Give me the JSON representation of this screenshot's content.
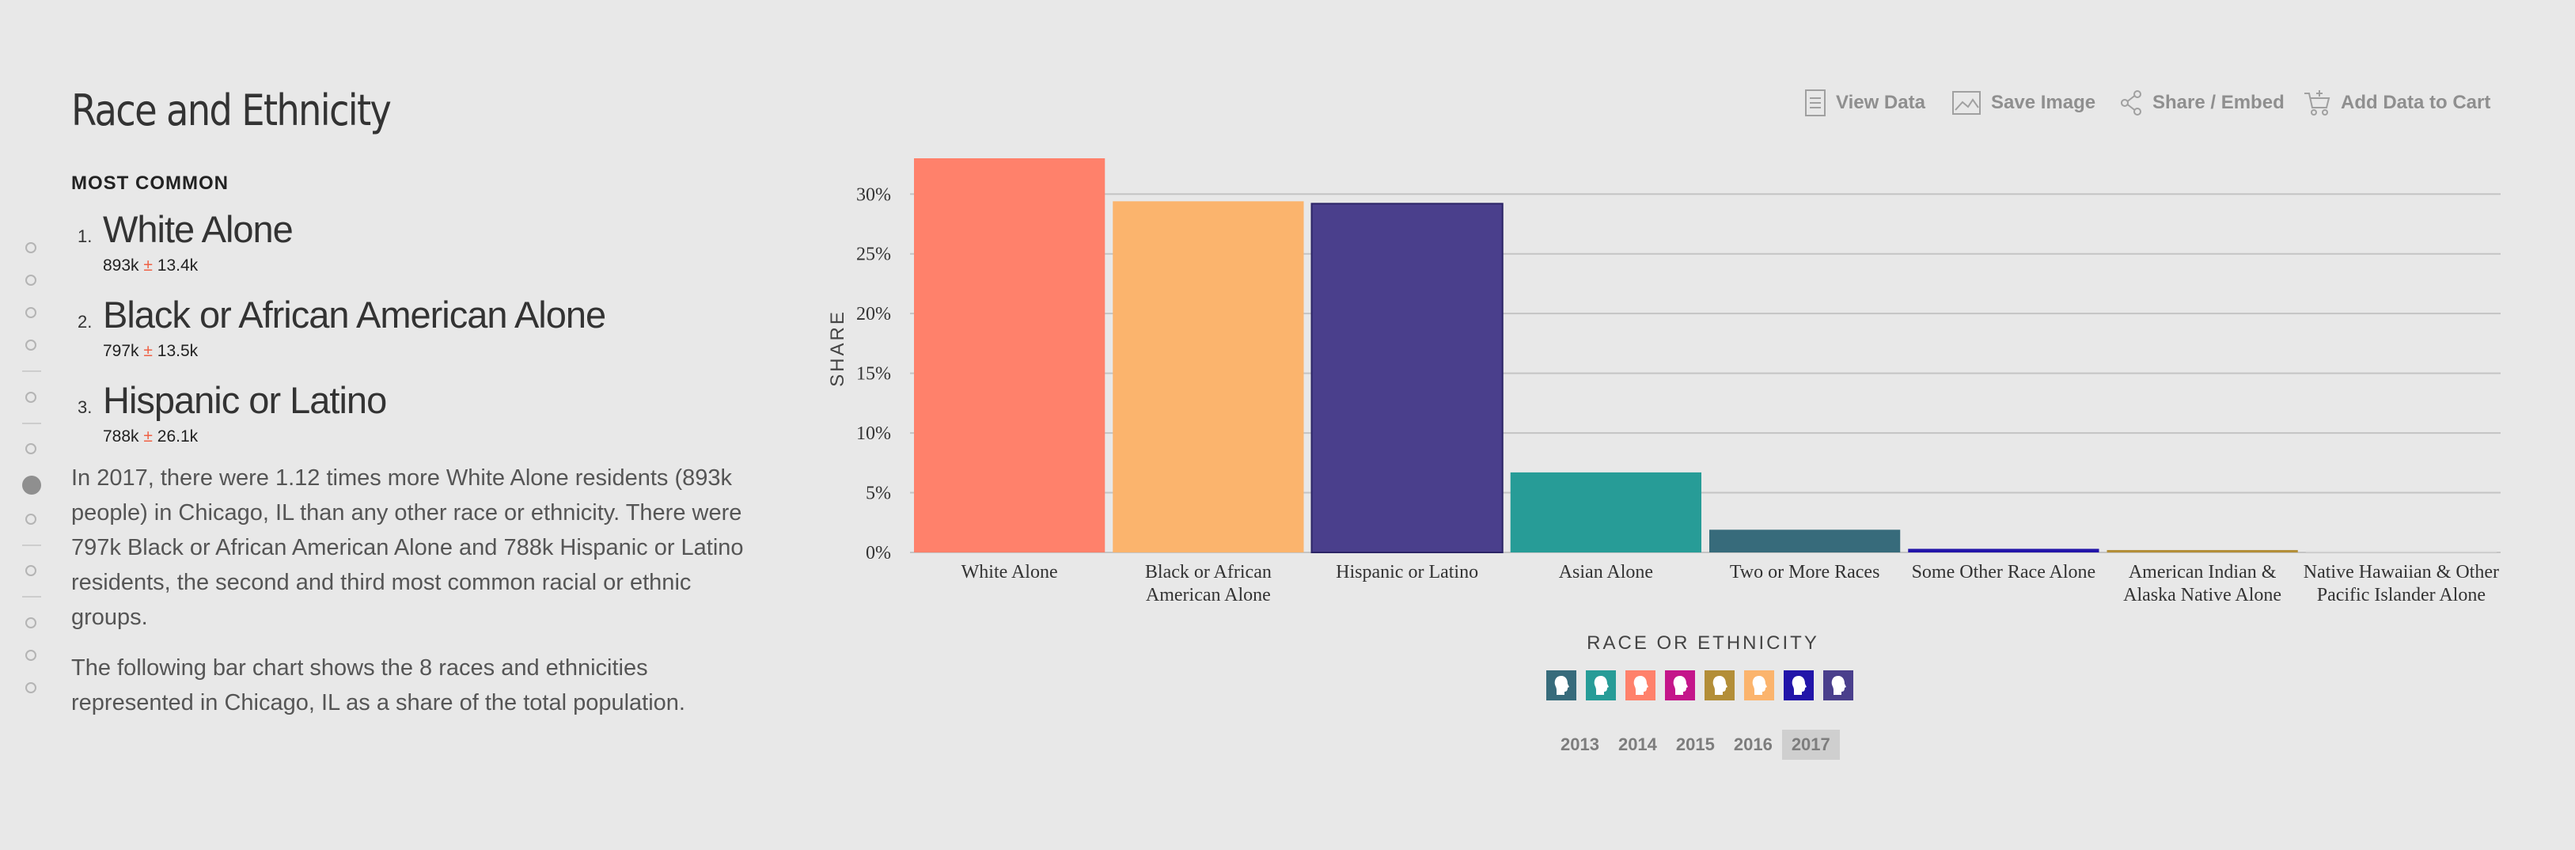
{
  "section": {
    "title": "Race and Ethnicity",
    "most_common_heading": "MOST COMMON"
  },
  "ranking": [
    {
      "rank": "1.",
      "name": "White Alone",
      "value": "893k",
      "pm": "±",
      "moe": "13.4k"
    },
    {
      "rank": "2.",
      "name": "Black or African American Alone",
      "value": "797k",
      "pm": "±",
      "moe": "13.5k"
    },
    {
      "rank": "3.",
      "name": "Hispanic or Latino",
      "value": "788k",
      "pm": "±",
      "moe": "26.1k"
    }
  ],
  "paragraphs": [
    "In 2017, there were 1.12 times more White Alone residents (893k people) in Chicago, IL than any other race or ethnicity. There were 797k Black or African American Alone and 788k Hispanic or Latino residents, the second and third most common racial or ethnic groups.",
    "The following bar chart shows the 8 races and ethnicities represented in Chicago, IL as a share of the total population."
  ],
  "toolbar": {
    "view_data": {
      "label": "View Data",
      "icon": "document-icon"
    },
    "save_image": {
      "label": "Save Image",
      "icon": "image-icon"
    },
    "share_embed": {
      "label": "Share / Embed",
      "icon": "share-icon"
    },
    "add_to_cart": {
      "label": "Add Data to Cart",
      "icon": "cart-icon"
    },
    "icon_color": "#a0a0a0"
  },
  "chart_data": {
    "type": "bar",
    "categories": [
      [
        "White Alone"
      ],
      [
        "Black or African",
        "American Alone"
      ],
      [
        "Hispanic or Latino"
      ],
      [
        "Asian Alone"
      ],
      [
        "Two or More Races"
      ],
      [
        "Some Other Race Alone"
      ],
      [
        "American Indian &",
        "Alaska Native Alone"
      ],
      [
        "Native Hawaiian & Other",
        "Pacific Islander Alone"
      ]
    ],
    "values": [
      33.0,
      29.4,
      29.2,
      6.7,
      1.9,
      0.3,
      0.2,
      0.03
    ],
    "colors": [
      "#ff816b",
      "#fbb46d",
      "#4a3f8c",
      "#279c97",
      "#376b7b",
      "#2215a9",
      "#b38e38",
      "#d9d9d9"
    ],
    "ylabel": "SHARE",
    "xlabel": "RACE OR ETHNICITY",
    "ylim": [
      0,
      33
    ],
    "yticks": [
      0,
      5,
      10,
      15,
      20,
      25,
      30
    ],
    "ytick_labels": [
      "0%",
      "5%",
      "10%",
      "15%",
      "20%",
      "25%",
      "30%"
    ],
    "grid": true,
    "gridline_color": "#c4c4c4",
    "legend": "none"
  },
  "swatches": [
    {
      "name": "swatch-two-or-more-races",
      "color": "#376b7b"
    },
    {
      "name": "swatch-asian",
      "color": "#279c97"
    },
    {
      "name": "swatch-white",
      "color": "#ff816b"
    },
    {
      "name": "swatch-some-other-race",
      "color": "#c4168a"
    },
    {
      "name": "swatch-american-indian",
      "color": "#b38e38"
    },
    {
      "name": "swatch-black",
      "color": "#fbb46d"
    },
    {
      "name": "swatch-native-hawaiian",
      "color": "#2215a9"
    },
    {
      "name": "swatch-hispanic",
      "color": "#4a3f8c"
    }
  ],
  "years": [
    "2013",
    "2014",
    "2015",
    "2016",
    "2017"
  ],
  "selected_year": "2017",
  "side_nav": {
    "active_index": 7
  }
}
